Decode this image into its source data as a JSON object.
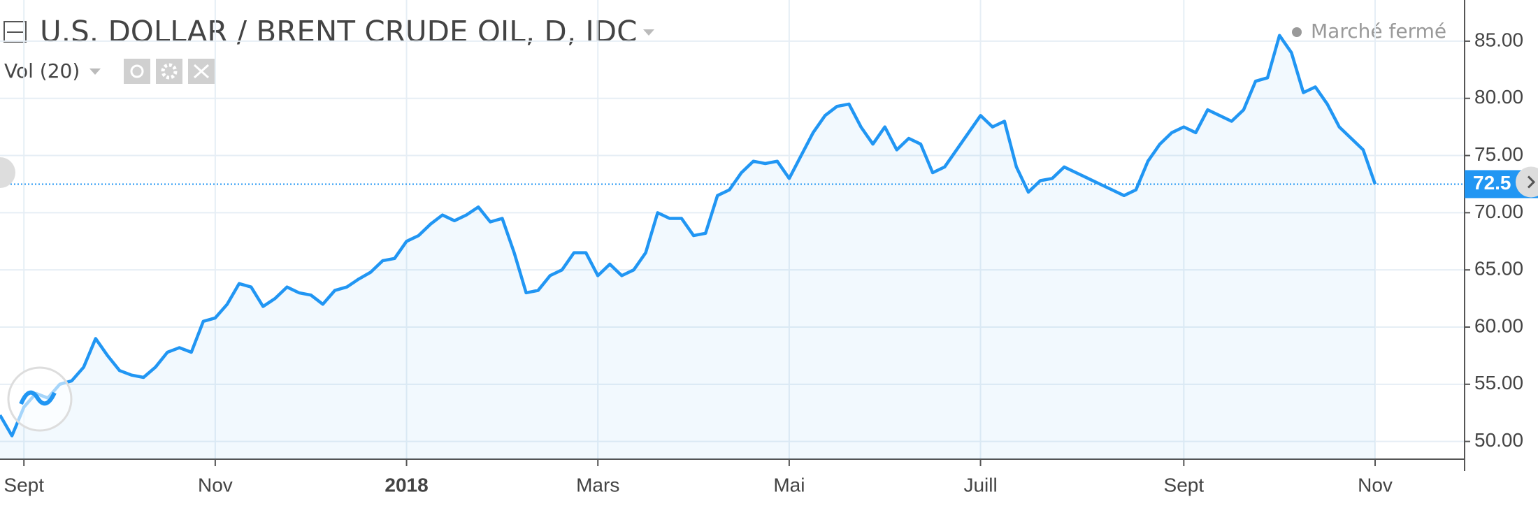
{
  "chart_data": {
    "type": "line",
    "title": "U.S. DOLLAR / BRENT CRUDE OIL, D, IDC",
    "indicator": "Vol (20)",
    "status": "Marché fermé",
    "categories": [
      null,
      null,
      "Sept",
      null,
      null,
      null,
      null,
      null,
      null,
      null,
      null,
      null,
      null,
      null,
      null,
      null,
      null,
      null,
      "Nov",
      null,
      null,
      null,
      null,
      null,
      null,
      null,
      null,
      null,
      null,
      null,
      null,
      null,
      null,
      null,
      "2018",
      null,
      null,
      null,
      null,
      null,
      null,
      null,
      null,
      null,
      null,
      null,
      null,
      null,
      null,
      null,
      "Mars",
      null,
      null,
      null,
      null,
      null,
      null,
      null,
      null,
      null,
      null,
      null,
      null,
      null,
      null,
      null,
      "Mai",
      null,
      null,
      null,
      null,
      null,
      null,
      null,
      null,
      null,
      null,
      null,
      null,
      null,
      null,
      null,
      "Juill",
      null,
      null,
      null,
      null,
      null,
      null,
      null,
      null,
      null,
      null,
      null,
      null,
      null,
      null,
      null,
      null,
      "Sept",
      null,
      null,
      null,
      null,
      null,
      null,
      null,
      null,
      null,
      null,
      null,
      null,
      null,
      null,
      null,
      "Nov"
    ],
    "series": [
      {
        "name": "U.S. DOLLAR / BRENT CRUDE OIL",
        "color": "#2196f3",
        "values": [
          52.3,
          50.5,
          53.0,
          54.2,
          53.8,
          55.0,
          55.3,
          56.5,
          59.0,
          57.5,
          56.2,
          55.8,
          55.6,
          56.5,
          57.8,
          58.2,
          57.8,
          60.5,
          60.8,
          62.0,
          63.8,
          63.5,
          61.8,
          62.5,
          63.5,
          63.0,
          62.8,
          62.0,
          63.2,
          63.5,
          64.2,
          64.8,
          65.8,
          66.0,
          67.5,
          68.0,
          69.0,
          69.8,
          69.3,
          69.8,
          70.5,
          69.2,
          69.5,
          66.5,
          63.0,
          63.2,
          64.5,
          65.0,
          66.5,
          66.5,
          64.5,
          65.5,
          64.5,
          65.0,
          66.5,
          70.0,
          69.5,
          69.5,
          68.0,
          68.2,
          71.5,
          72.0,
          73.5,
          74.5,
          74.3,
          74.5,
          73.0,
          75.0,
          77.0,
          78.5,
          79.3,
          79.5,
          77.5,
          76.0,
          77.5,
          75.5,
          76.5,
          76.0,
          73.5,
          74.0,
          75.5,
          77.0,
          78.5,
          77.5,
          78.0,
          74.0,
          71.8,
          72.8,
          73.0,
          74.0,
          73.5,
          73.0,
          72.5,
          72.0,
          71.5,
          72.0,
          74.5,
          76.0,
          77.0,
          77.5,
          77.0,
          79.0,
          78.5,
          78.0,
          79.0,
          81.5,
          81.8,
          85.5,
          84.0,
          80.5,
          81.0,
          79.5,
          77.5,
          76.5,
          75.5,
          72.5
        ]
      }
    ],
    "last_price": {
      "value": 72.5,
      "label": "72.5"
    },
    "ylim": [
      48.45,
      88.6
    ],
    "yticks": [
      {
        "value": 50,
        "label": "50.00"
      },
      {
        "value": 55,
        "label": "55.00"
      },
      {
        "value": 60,
        "label": "60.00"
      },
      {
        "value": 65,
        "label": "65.00"
      },
      {
        "value": 70,
        "label": "70.00"
      },
      {
        "value": 75,
        "label": "75.00"
      },
      {
        "value": 80,
        "label": "80.00"
      },
      {
        "value": 85,
        "label": "85.00"
      }
    ],
    "grid": true
  }
}
